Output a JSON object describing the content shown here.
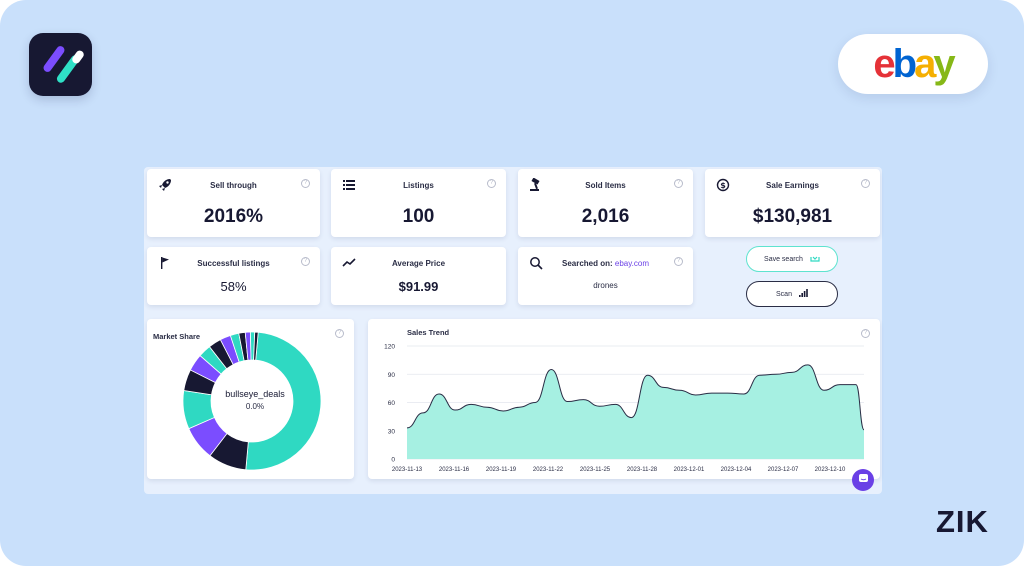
{
  "brand": {
    "app_logo_icon": "zik-slash-icon",
    "marketplace_logo_letters": [
      "e",
      "b",
      "a",
      "y"
    ],
    "zik_wordmark": "ZIK"
  },
  "stats": [
    {
      "label": "Sell through",
      "value": "2016%",
      "icon": "rocket-icon"
    },
    {
      "label": "Listings",
      "value": "100",
      "icon": "list-icon"
    },
    {
      "label": "Sold Items",
      "value": "2,016",
      "icon": "gavel-icon"
    },
    {
      "label": "Sale Earnings",
      "value": "$130,981",
      "icon": "dollar-icon"
    }
  ],
  "stats_row2": [
    {
      "label": "Successful listings",
      "value": "58%",
      "icon": "flag-icon"
    },
    {
      "label": "Average Price",
      "value": "$91.99",
      "icon": "trend-icon"
    }
  ],
  "search_card": {
    "label_prefix": "Searched on:",
    "site": "ebay.com",
    "query": "drones",
    "icon": "search-icon"
  },
  "actions": {
    "save_search": "Save search",
    "scan": "Scan"
  },
  "colors": {
    "accent_teal": "#2fd9c2",
    "accent_purple": "#7b4dff",
    "dark": "#171832",
    "area_fill": "#a6f0e2"
  },
  "market_share": {
    "title": "Market Share",
    "center_label": "bullseye_deals",
    "center_value": "0.0%",
    "chart_data": {
      "type": "pie",
      "slices": [
        {
          "value": 50,
          "color": "#2fd9c2"
        },
        {
          "value": 9,
          "color": "#171832"
        },
        {
          "value": 8,
          "color": "#7b4dff"
        },
        {
          "value": 9,
          "color": "#2fd9c2"
        },
        {
          "value": 5,
          "color": "#171832"
        },
        {
          "value": 4,
          "color": "#7b4dff"
        },
        {
          "value": 3,
          "color": "#2fd9c2"
        },
        {
          "value": 3,
          "color": "#171832"
        },
        {
          "value": 2.5,
          "color": "#7b4dff"
        },
        {
          "value": 2,
          "color": "#2fd9c2"
        },
        {
          "value": 1.5,
          "color": "#171832"
        },
        {
          "value": 1.2,
          "color": "#7b4dff"
        },
        {
          "value": 1,
          "color": "#2fd9c2"
        },
        {
          "value": 0.8,
          "color": "#171832"
        }
      ]
    }
  },
  "sales_trend": {
    "title": "Sales Trend",
    "chart_data": {
      "type": "area",
      "ylim": [
        0,
        120
      ],
      "yticks": [
        "0",
        "30",
        "60",
        "90",
        "120"
      ],
      "xticks": [
        "2023-11-13",
        "2023-11-16",
        "2023-11-19",
        "2023-11-22",
        "2023-11-25",
        "2023-11-28",
        "2023-12-01",
        "2023-12-04",
        "2023-12-07",
        "2023-12-10"
      ],
      "x": [
        "2023-11-13",
        "2023-11-14",
        "2023-11-15",
        "2023-11-16",
        "2023-11-17",
        "2023-11-18",
        "2023-11-19",
        "2023-11-20",
        "2023-11-21",
        "2023-11-22",
        "2023-11-23",
        "2023-11-24",
        "2023-11-25",
        "2023-11-26",
        "2023-11-27",
        "2023-11-28",
        "2023-11-29",
        "2023-11-30",
        "2023-12-01",
        "2023-12-02",
        "2023-12-03",
        "2023-12-04",
        "2023-12-05",
        "2023-12-06",
        "2023-12-07",
        "2023-12-08",
        "2023-12-09",
        "2023-12-10",
        "2023-12-11"
      ],
      "values": [
        33,
        49,
        69,
        52,
        58,
        55,
        51,
        55,
        60,
        95,
        61,
        63,
        56,
        58,
        44,
        89,
        76,
        73,
        68,
        70,
        70,
        69,
        89,
        90,
        92,
        100,
        73,
        79,
        79
      ],
      "tail_value": 31
    }
  }
}
